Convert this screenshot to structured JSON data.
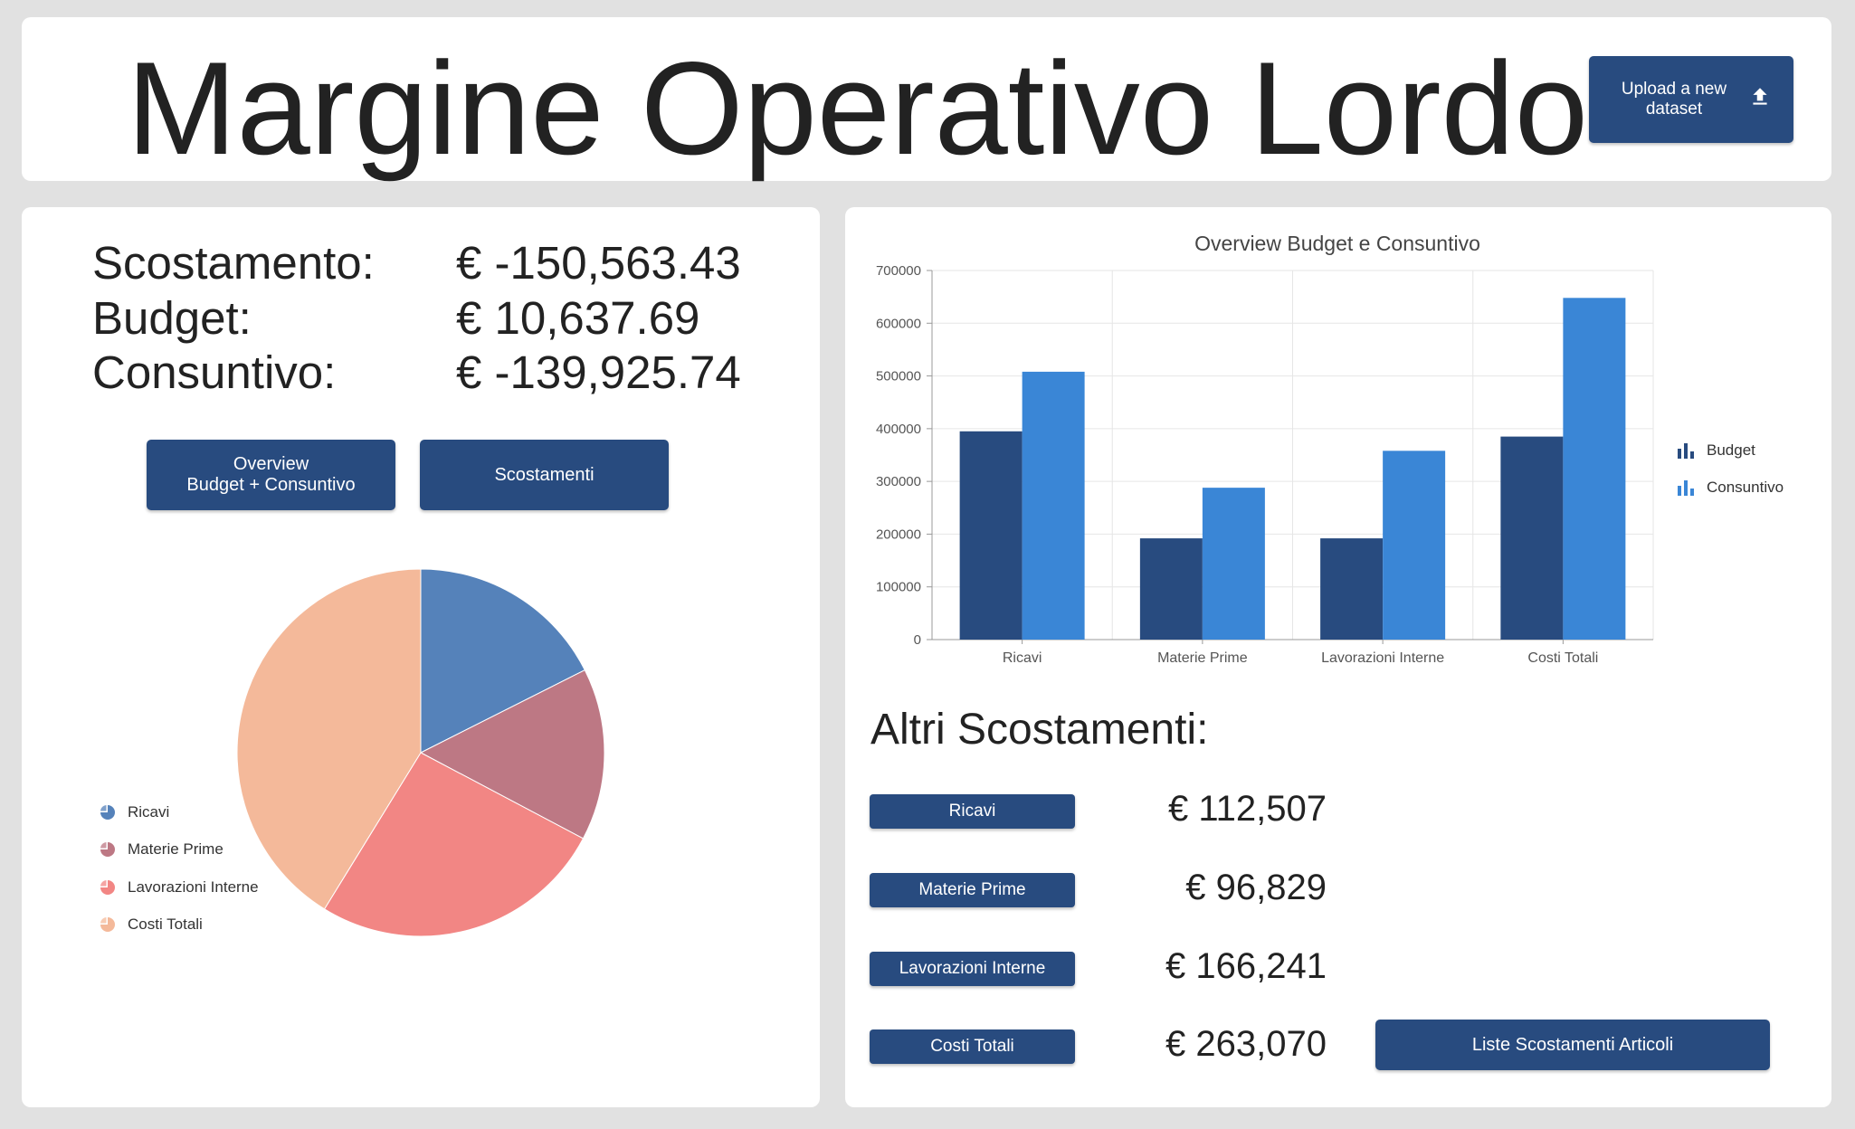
{
  "header": {
    "title": "Margine Operativo Lordo",
    "upload_label": "Upload a new dataset",
    "upload_icon": "upload-icon"
  },
  "summary": {
    "scostamento_label": "Scostamento:",
    "scostamento_value": "€ -150,563.43",
    "budget_label": "Budget:",
    "budget_value": "€ 10,637.69",
    "consuntivo_label": "Consuntivo:",
    "consuntivo_value": "€ -139,925.74"
  },
  "buttons": {
    "overview_label": "Overview\nBudget + Consuntivo",
    "scostamenti_label": "Scostamenti"
  },
  "altri": {
    "title": "Altri Scostamenti:",
    "items": [
      {
        "label": "Ricavi",
        "value": "€ 112,507"
      },
      {
        "label": "Materie Prime",
        "value": "€ 96,829"
      },
      {
        "label": "Lavorazioni Interne",
        "value": "€ 166,241"
      },
      {
        "label": "Costi Totali",
        "value": "€ 263,070"
      }
    ],
    "liste_label": "Liste Scostamenti Articoli"
  },
  "colors": {
    "button": "#284b7f",
    "budget": "#284b7f",
    "consuntivo": "#3a86d6",
    "pie": [
      "#5582ba",
      "#bd7884",
      "#f28684",
      "#f4b99a"
    ]
  },
  "chart_data": [
    {
      "type": "pie",
      "legend_position": "left",
      "categories": [
        "Ricavi",
        "Materie Prime",
        "Lavorazioni Interne",
        "Costi Totali"
      ],
      "values": [
        16.8,
        14.5,
        24.9,
        39.4
      ]
    },
    {
      "type": "bar",
      "title": "Overview Budget e Consuntivo",
      "categories": [
        "Ricavi",
        "Materie Prime",
        "Lavorazioni Interne",
        "Costi Totali"
      ],
      "series": [
        {
          "name": "Budget",
          "values": [
            395000,
            192000,
            192000,
            385000
          ]
        },
        {
          "name": "Consuntivo",
          "values": [
            508000,
            288000,
            358000,
            648000
          ]
        }
      ],
      "ylim": [
        0,
        700000
      ],
      "yticks": [
        0,
        100000,
        200000,
        300000,
        400000,
        500000,
        600000,
        700000
      ],
      "grid": true,
      "legend_position": "right"
    }
  ]
}
